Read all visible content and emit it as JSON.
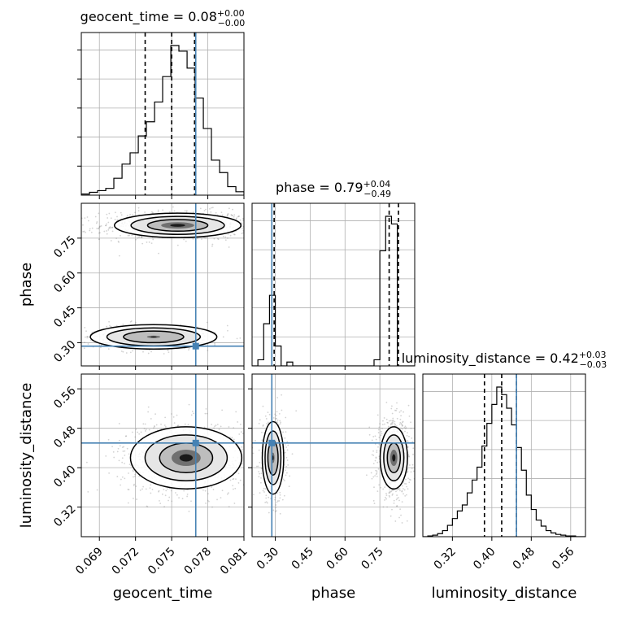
{
  "chart_data": {
    "type": "corner",
    "parameters": [
      "geocent_time",
      "phase",
      "luminosity_distance"
    ],
    "titles": {
      "geocent_time": {
        "prefix": "geocent_time = ",
        "value": "0.08",
        "plus": "+0.00",
        "minus": "−0.00"
      },
      "phase": {
        "prefix": "phase = ",
        "value": "0.79",
        "plus": "+0.04",
        "minus": "−0.49"
      },
      "luminosity_distance": {
        "prefix": "luminosity_distance = ",
        "value": "0.42",
        "plus": "+0.03",
        "minus": "−0.03"
      }
    },
    "axes": {
      "geocent_time": {
        "range": [
          0.0675,
          0.081
        ],
        "ticks": [
          0.069,
          0.072,
          0.075,
          0.078,
          0.081
        ],
        "tick_labels": [
          "0.069",
          "0.072",
          "0.075",
          "0.078",
          "0.081"
        ],
        "label": "geocent_time"
      },
      "phase": {
        "range": [
          0.2,
          0.9
        ],
        "ticks": [
          0.3,
          0.45,
          0.6,
          0.75
        ],
        "tick_labels": [
          "0.30",
          "0.45",
          "0.60",
          "0.75"
        ],
        "label": "phase"
      },
      "luminosity_distance": {
        "range": [
          0.26,
          0.59
        ],
        "ticks": [
          0.32,
          0.4,
          0.48,
          0.56
        ],
        "tick_labels": [
          "0.32",
          "0.40",
          "0.48",
          "0.56"
        ],
        "label": "luminosity_distance"
      }
    },
    "truth": {
      "geocent_time": 0.077,
      "phase": 0.285,
      "luminosity_distance": 0.45
    },
    "quantiles": {
      "geocent_time": [
        0.0728,
        0.075,
        0.0769
      ],
      "phase": [
        0.295,
        0.79,
        0.83
      ],
      "luminosity_distance": [
        0.385,
        0.42,
        0.45
      ]
    },
    "histograms": {
      "geocent_time": {
        "bin_edges": [
          0.0675,
          0.06818,
          0.06885,
          0.06953,
          0.0702,
          0.07088,
          0.07155,
          0.07223,
          0.0729,
          0.07358,
          0.07425,
          0.07493,
          0.0756,
          0.07628,
          0.07695,
          0.07763,
          0.0783,
          0.07898,
          0.07965,
          0.08033,
          0.081
        ],
        "counts": [
          2,
          5,
          8,
          12,
          30,
          55,
          75,
          105,
          130,
          165,
          210,
          265,
          255,
          225,
          172,
          118,
          62,
          40,
          15,
          6
        ]
      },
      "phase": {
        "bin_edges": [
          0.2,
          0.225,
          0.25,
          0.275,
          0.3,
          0.325,
          0.35,
          0.375,
          0.4,
          0.425,
          0.45,
          0.475,
          0.5,
          0.525,
          0.55,
          0.575,
          0.6,
          0.625,
          0.65,
          0.675,
          0.7,
          0.725,
          0.75,
          0.775,
          0.8,
          0.825,
          0.85,
          0.875,
          0.9
        ],
        "counts": [
          0,
          8,
          55,
          92,
          26,
          0,
          5,
          0,
          0,
          0,
          0,
          0,
          0,
          0,
          0,
          0,
          0,
          0,
          0,
          0,
          0,
          8,
          150,
          195,
          185,
          0,
          0,
          0
        ]
      },
      "luminosity_distance": {
        "bin_edges": [
          0.26,
          0.27,
          0.28,
          0.29,
          0.3,
          0.31,
          0.32,
          0.33,
          0.34,
          0.35,
          0.36,
          0.37,
          0.38,
          0.39,
          0.4,
          0.41,
          0.42,
          0.43,
          0.44,
          0.45,
          0.46,
          0.47,
          0.48,
          0.49,
          0.5,
          0.51,
          0.52,
          0.53,
          0.54,
          0.55,
          0.56,
          0.57,
          0.58,
          0.59
        ],
        "counts": [
          0,
          1,
          2,
          4,
          8,
          15,
          24,
          34,
          42,
          58,
          75,
          92,
          120,
          150,
          175,
          198,
          188,
          170,
          148,
          118,
          88,
          55,
          36,
          22,
          14,
          8,
          5,
          3,
          2,
          1,
          1,
          0,
          0
        ]
      }
    },
    "densities": {
      "phase_vs_geocent_time": [
        {
          "cx": 0.0755,
          "cy": 0.805,
          "sx": 0.0025,
          "sy": 0.025,
          "weight": 1.0
        },
        {
          "cx": 0.0735,
          "cy": 0.325,
          "sx": 0.0025,
          "sy": 0.025,
          "weight": 0.4
        }
      ],
      "luminosity_distance_vs_geocent_time": [
        {
          "cx": 0.0762,
          "cy": 0.42,
          "sx": 0.0022,
          "sy": 0.03,
          "weight": 1.0
        }
      ],
      "luminosity_distance_vs_phase": [
        {
          "cx": 0.29,
          "cy": 0.42,
          "sx": 0.022,
          "sy": 0.035,
          "weight": 0.55
        },
        {
          "cx": 0.81,
          "cy": 0.42,
          "sx": 0.028,
          "sy": 0.03,
          "weight": 1.0
        }
      ]
    },
    "colors": {
      "truth": "#4682b4",
      "hist": "#000000",
      "grid": "#b0b0b0",
      "scatter": "#808080",
      "quantile": "#000000"
    },
    "grid": true
  }
}
